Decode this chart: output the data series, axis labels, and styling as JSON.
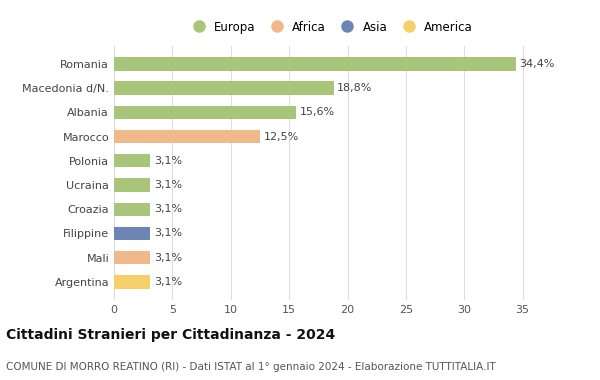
{
  "countries": [
    "Romania",
    "Macedonia d/N.",
    "Albania",
    "Marocco",
    "Polonia",
    "Ucraina",
    "Croazia",
    "Filippine",
    "Mali",
    "Argentina"
  ],
  "values": [
    34.4,
    18.8,
    15.6,
    12.5,
    3.1,
    3.1,
    3.1,
    3.1,
    3.1,
    3.1
  ],
  "labels": [
    "34,4%",
    "18,8%",
    "15,6%",
    "12,5%",
    "3,1%",
    "3,1%",
    "3,1%",
    "3,1%",
    "3,1%",
    "3,1%"
  ],
  "colors": [
    "#a8c57a",
    "#a8c57a",
    "#a8c57a",
    "#f0b98a",
    "#a8c57a",
    "#a8c57a",
    "#a8c57a",
    "#6b85b5",
    "#f0b98a",
    "#f5d06a"
  ],
  "legend_labels": [
    "Europa",
    "Africa",
    "Asia",
    "America"
  ],
  "legend_colors": [
    "#a8c57a",
    "#f0b98a",
    "#6b85b5",
    "#f5d06a"
  ],
  "title": "Cittadini Stranieri per Cittadinanza - 2024",
  "subtitle": "COMUNE DI MORRO REATINO (RI) - Dati ISTAT al 1° gennaio 2024 - Elaborazione TUTTITALIA.IT",
  "xlim": [
    0,
    37
  ],
  "xticks": [
    0,
    5,
    10,
    15,
    20,
    25,
    30,
    35
  ],
  "background_color": "#ffffff",
  "grid_color": "#dddddd",
  "bar_height": 0.55,
  "title_fontsize": 10,
  "subtitle_fontsize": 7.5,
  "tick_fontsize": 8,
  "label_fontsize": 8,
  "legend_fontsize": 8.5
}
